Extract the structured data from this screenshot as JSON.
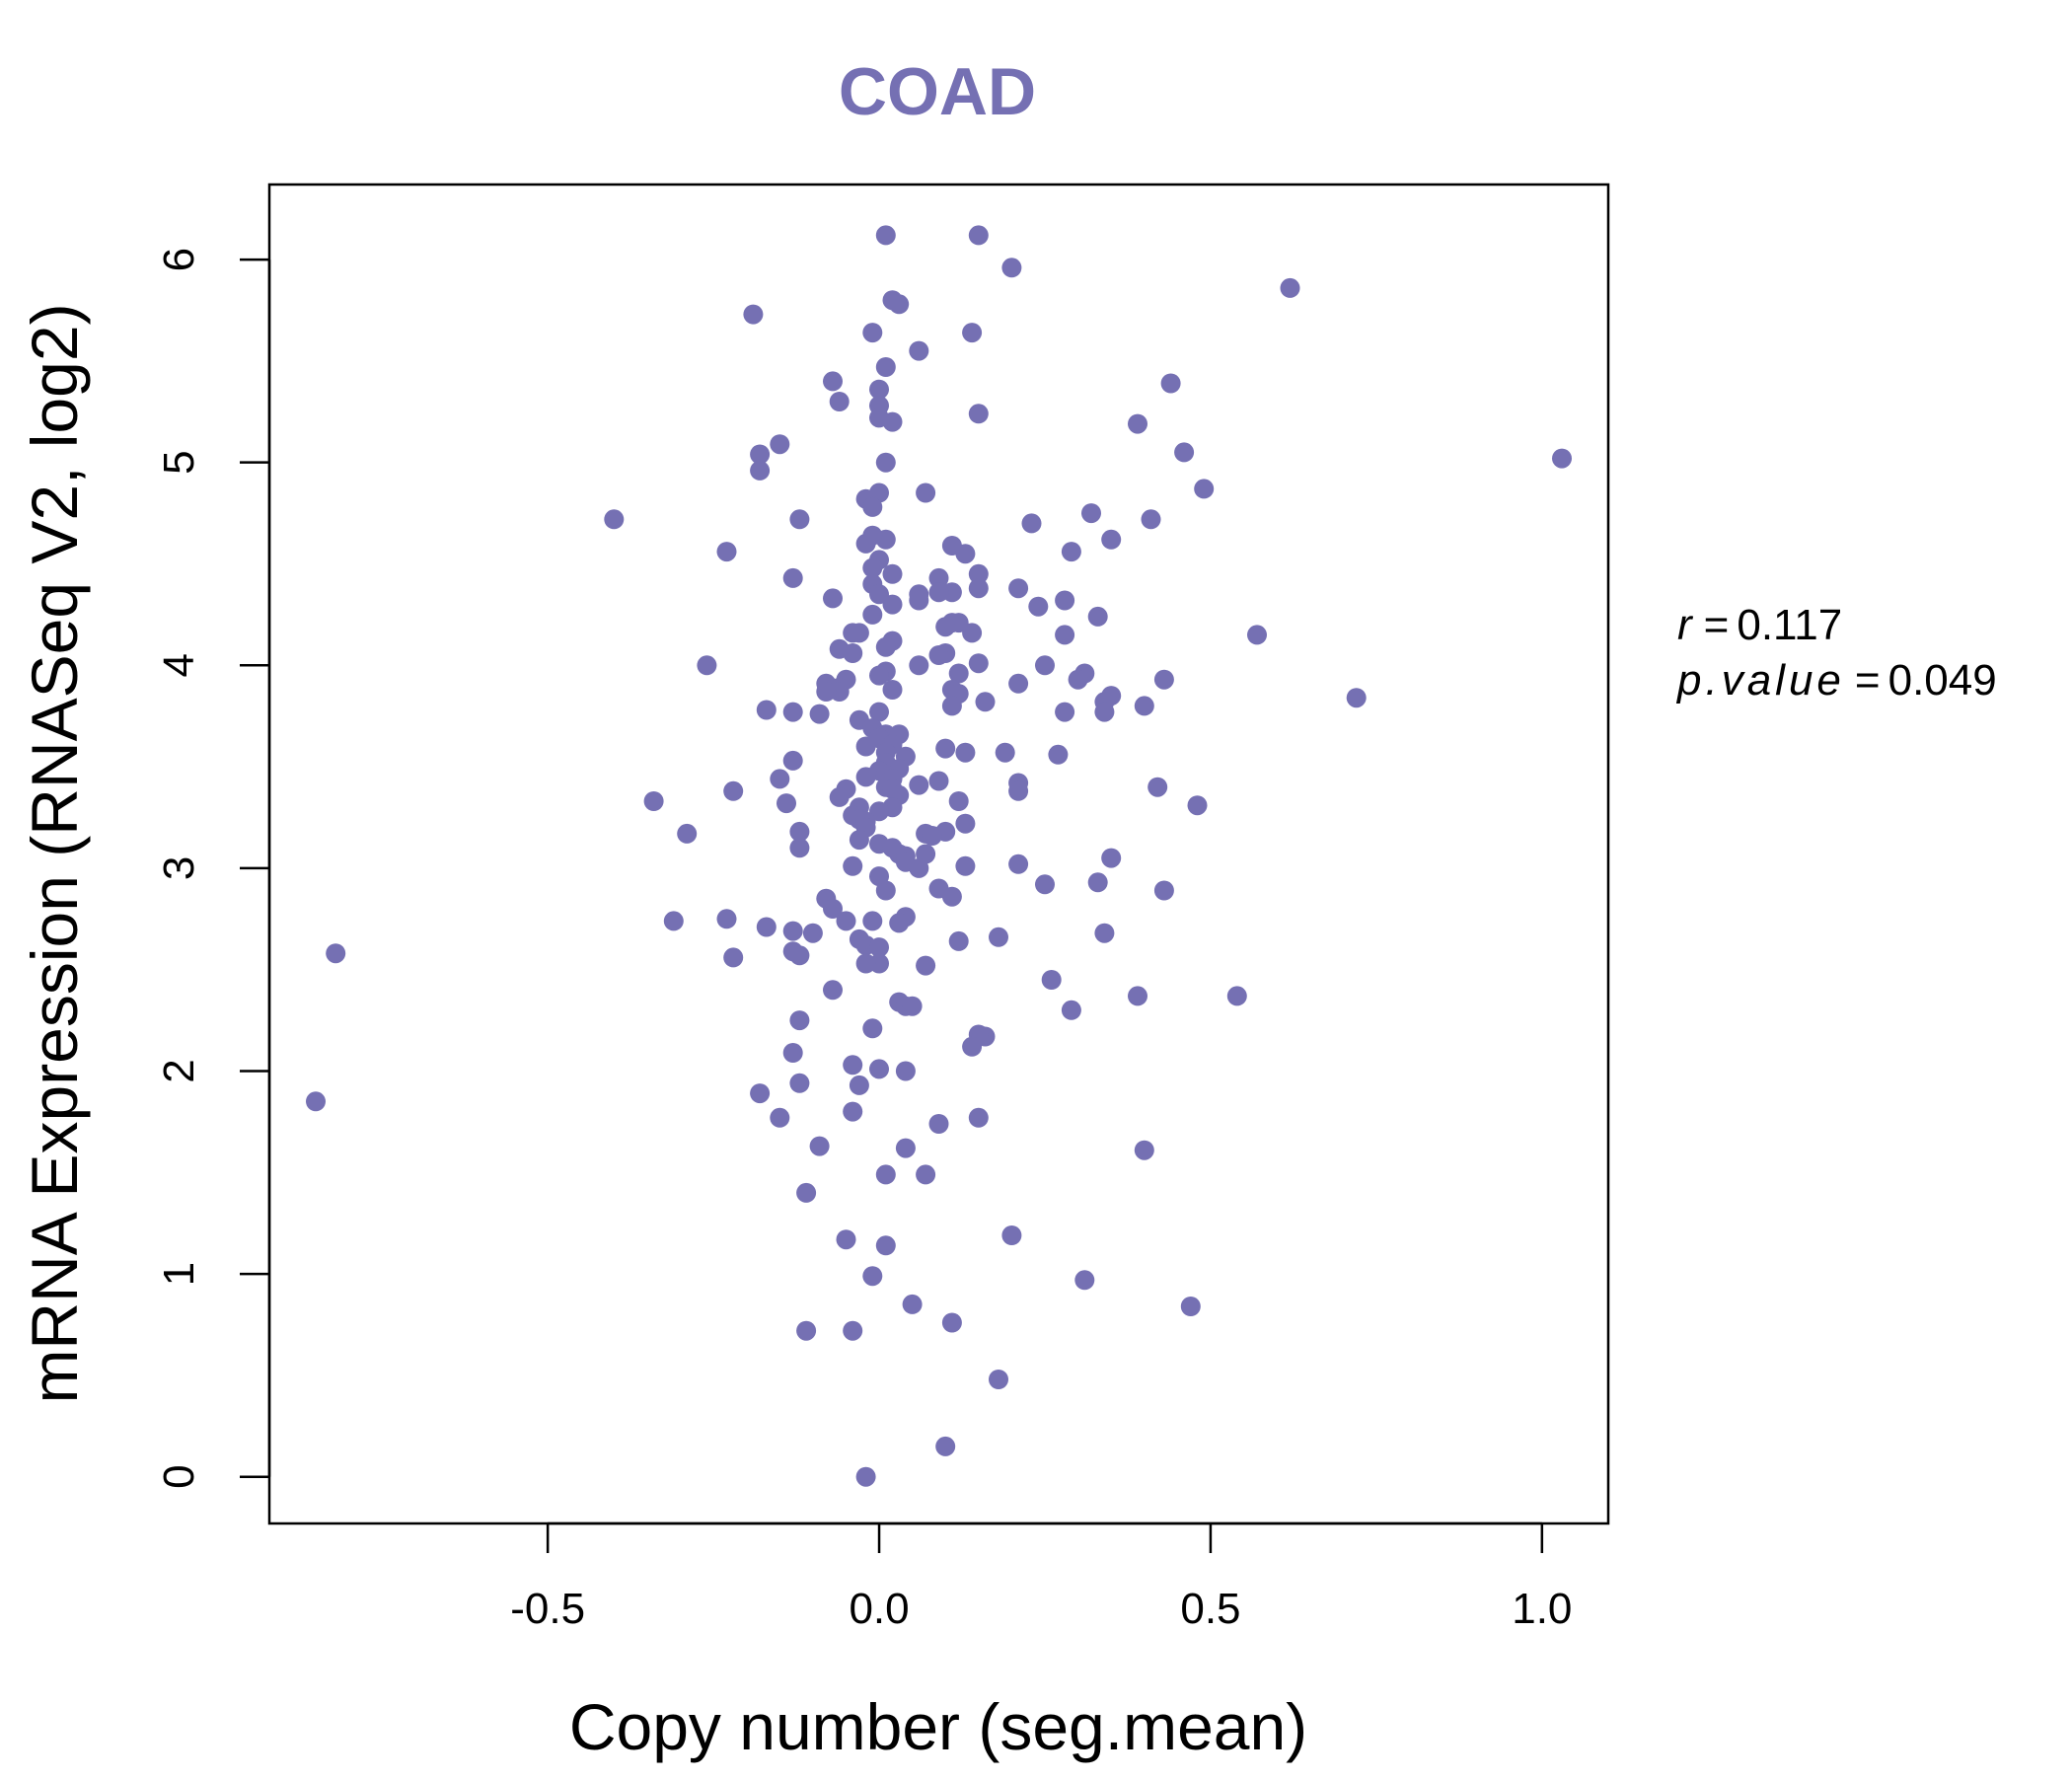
{
  "colors": {
    "point": "#7570B3",
    "title": "#7570B3",
    "axis": "#000000",
    "background": "#FFFFFF"
  },
  "chart_data": {
    "type": "scatter",
    "title": "COAD",
    "xlabel": "Copy number (seg.mean)",
    "ylabel": "mRNA Expression (RNASeq V2, log2)",
    "xlim": [
      -0.92,
      1.1
    ],
    "ylim": [
      -0.23,
      6.37
    ],
    "x_ticks": [
      -0.5,
      0.0,
      0.5,
      1.0
    ],
    "x_tick_labels": [
      "-0.5",
      "0.0",
      "0.5",
      "1.0"
    ],
    "y_ticks": [
      0,
      1,
      2,
      3,
      4,
      5,
      6
    ],
    "y_tick_labels": [
      "0",
      "1",
      "2",
      "3",
      "4",
      "5",
      "6"
    ],
    "grid": false,
    "legend": "none",
    "stats": {
      "r_label": "r",
      "r_value": "0.117",
      "p_label": "p.value",
      "p_value": "0.049"
    },
    "points": [
      [
        0.01,
        6.12
      ],
      [
        0.15,
        6.12
      ],
      [
        0.2,
        5.96
      ],
      [
        0.62,
        5.86
      ],
      [
        0.02,
        5.8
      ],
      [
        0.03,
        5.78
      ],
      [
        -0.19,
        5.73
      ],
      [
        -0.01,
        5.64
      ],
      [
        0.14,
        5.64
      ],
      [
        0.06,
        5.55
      ],
      [
        0.01,
        5.47
      ],
      [
        -0.07,
        5.4
      ],
      [
        0.44,
        5.39
      ],
      [
        0.0,
        5.36
      ],
      [
        -0.06,
        5.3
      ],
      [
        0.0,
        5.28
      ],
      [
        0.15,
        5.24
      ],
      [
        0.0,
        5.22
      ],
      [
        0.02,
        5.2
      ],
      [
        0.39,
        5.19
      ],
      [
        -0.15,
        5.09
      ],
      [
        0.46,
        5.05
      ],
      [
        -0.18,
        5.04
      ],
      [
        1.03,
        5.02
      ],
      [
        0.01,
        5.0
      ],
      [
        -0.18,
        4.96
      ],
      [
        0.49,
        4.87
      ],
      [
        0.07,
        4.85
      ],
      [
        0.0,
        4.85
      ],
      [
        -0.02,
        4.82
      ],
      [
        -0.01,
        4.78
      ],
      [
        0.32,
        4.75
      ],
      [
        -0.12,
        4.72
      ],
      [
        -0.4,
        4.72
      ],
      [
        0.41,
        4.72
      ],
      [
        0.23,
        4.7
      ],
      [
        0.01,
        4.62
      ],
      [
        -0.01,
        4.64
      ],
      [
        0.35,
        4.62
      ],
      [
        -0.02,
        4.6
      ],
      [
        0.11,
        4.59
      ],
      [
        -0.23,
        4.56
      ],
      [
        0.29,
        4.56
      ],
      [
        0.13,
        4.55
      ],
      [
        0.0,
        4.52
      ],
      [
        -0.01,
        4.48
      ],
      [
        0.02,
        4.45
      ],
      [
        0.15,
        4.45
      ],
      [
        -0.13,
        4.43
      ],
      [
        0.09,
        4.43
      ],
      [
        -0.01,
        4.4
      ],
      [
        0.15,
        4.38
      ],
      [
        0.21,
        4.38
      ],
      [
        0.0,
        4.35
      ],
      [
        0.06,
        4.35
      ],
      [
        0.11,
        4.36
      ],
      [
        0.09,
        4.36
      ],
      [
        -0.07,
        4.33
      ],
      [
        0.28,
        4.32
      ],
      [
        0.02,
        4.3
      ],
      [
        0.06,
        4.32
      ],
      [
        0.24,
        4.29
      ],
      [
        -0.01,
        4.25
      ],
      [
        0.33,
        4.24
      ],
      [
        0.11,
        4.21
      ],
      [
        0.12,
        4.21
      ],
      [
        0.1,
        4.19
      ],
      [
        0.14,
        4.16
      ],
      [
        -0.04,
        4.16
      ],
      [
        -0.03,
        4.16
      ],
      [
        0.57,
        4.15
      ],
      [
        0.28,
        4.15
      ],
      [
        0.02,
        4.12
      ],
      [
        -0.06,
        4.08
      ],
      [
        0.01,
        4.09
      ],
      [
        -0.04,
        4.06
      ],
      [
        0.1,
        4.06
      ],
      [
        0.09,
        4.05
      ],
      [
        0.15,
        4.01
      ],
      [
        -0.26,
        4.0
      ],
      [
        0.06,
        4.0
      ],
      [
        0.25,
        4.0
      ],
      [
        0.01,
        3.97
      ],
      [
        0.31,
        3.96
      ],
      [
        0.12,
        3.96
      ],
      [
        0.0,
        3.95
      ],
      [
        0.3,
        3.93
      ],
      [
        0.43,
        3.93
      ],
      [
        -0.05,
        3.93
      ],
      [
        -0.08,
        3.91
      ],
      [
        0.21,
        3.91
      ],
      [
        -0.06,
        3.89
      ],
      [
        0.02,
        3.88
      ],
      [
        0.11,
        3.88
      ],
      [
        -0.06,
        3.87
      ],
      [
        -0.08,
        3.87
      ],
      [
        0.12,
        3.86
      ],
      [
        0.35,
        3.85
      ],
      [
        0.72,
        3.84
      ],
      [
        0.34,
        3.82
      ],
      [
        0.16,
        3.82
      ],
      [
        0.11,
        3.8
      ],
      [
        0.4,
        3.8
      ],
      [
        0.34,
        3.77
      ],
      [
        -0.17,
        3.78
      ],
      [
        -0.13,
        3.77
      ],
      [
        0.28,
        3.77
      ],
      [
        -0.09,
        3.76
      ],
      [
        0.0,
        3.77
      ],
      [
        -0.03,
        3.73
      ],
      [
        -0.01,
        3.69
      ],
      [
        0.01,
        3.66
      ],
      [
        0.03,
        3.66
      ],
      [
        0.0,
        3.64
      ],
      [
        0.02,
        3.61
      ],
      [
        -0.02,
        3.6
      ],
      [
        0.1,
        3.59
      ],
      [
        0.13,
        3.57
      ],
      [
        0.19,
        3.57
      ],
      [
        0.01,
        3.57
      ],
      [
        0.27,
        3.56
      ],
      [
        0.04,
        3.55
      ],
      [
        -0.13,
        3.53
      ],
      [
        0.01,
        3.52
      ],
      [
        0.03,
        3.49
      ],
      [
        0.0,
        3.48
      ],
      [
        0.01,
        3.46
      ],
      [
        -0.02,
        3.45
      ],
      [
        0.02,
        3.44
      ],
      [
        -0.15,
        3.44
      ],
      [
        0.09,
        3.43
      ],
      [
        0.21,
        3.42
      ],
      [
        0.06,
        3.41
      ],
      [
        0.01,
        3.4
      ],
      [
        -0.05,
        3.39
      ],
      [
        0.02,
        3.39
      ],
      [
        0.42,
        3.4
      ],
      [
        0.21,
        3.38
      ],
      [
        -0.22,
        3.38
      ],
      [
        -0.06,
        3.35
      ],
      [
        0.03,
        3.36
      ],
      [
        -0.34,
        3.33
      ],
      [
        -0.14,
        3.32
      ],
      [
        0.12,
        3.33
      ],
      [
        0.48,
        3.31
      ],
      [
        0.02,
        3.3
      ],
      [
        -0.03,
        3.3
      ],
      [
        0.0,
        3.28
      ],
      [
        -0.04,
        3.26
      ],
      [
        -0.03,
        3.24
      ],
      [
        -0.02,
        3.23
      ],
      [
        0.13,
        3.22
      ],
      [
        -0.02,
        3.2
      ],
      [
        -0.12,
        3.18
      ],
      [
        0.1,
        3.18
      ],
      [
        -0.29,
        3.17
      ],
      [
        0.07,
        3.17
      ],
      [
        0.08,
        3.16
      ],
      [
        -0.03,
        3.14
      ],
      [
        0.0,
        3.12
      ],
      [
        -0.12,
        3.1
      ],
      [
        0.02,
        3.1
      ],
      [
        0.03,
        3.07
      ],
      [
        0.04,
        3.06
      ],
      [
        0.07,
        3.07
      ],
      [
        0.04,
        3.03
      ],
      [
        0.06,
        3.0
      ],
      [
        0.35,
        3.05
      ],
      [
        0.13,
        3.01
      ],
      [
        -0.04,
        3.01
      ],
      [
        0.21,
        3.02
      ],
      [
        0.0,
        2.96
      ],
      [
        0.33,
        2.93
      ],
      [
        0.25,
        2.92
      ],
      [
        0.09,
        2.9
      ],
      [
        0.01,
        2.89
      ],
      [
        0.43,
        2.89
      ],
      [
        0.11,
        2.86
      ],
      [
        -0.08,
        2.85
      ],
      [
        -0.07,
        2.8
      ],
      [
        0.04,
        2.76
      ],
      [
        -0.31,
        2.74
      ],
      [
        -0.23,
        2.75
      ],
      [
        -0.05,
        2.74
      ],
      [
        -0.01,
        2.74
      ],
      [
        0.03,
        2.73
      ],
      [
        -0.17,
        2.71
      ],
      [
        -0.13,
        2.69
      ],
      [
        -0.1,
        2.68
      ],
      [
        0.34,
        2.68
      ],
      [
        0.18,
        2.66
      ],
      [
        -0.03,
        2.65
      ],
      [
        0.12,
        2.64
      ],
      [
        -0.02,
        2.62
      ],
      [
        -0.13,
        2.59
      ],
      [
        0.0,
        2.61
      ],
      [
        -0.12,
        2.57
      ],
      [
        -0.22,
        2.56
      ],
      [
        0.0,
        2.53
      ],
      [
        -0.02,
        2.53
      ],
      [
        0.07,
        2.52
      ],
      [
        0.26,
        2.45
      ],
      [
        -0.07,
        2.4
      ],
      [
        -0.82,
        2.58
      ],
      [
        0.54,
        2.37
      ],
      [
        0.39,
        2.37
      ],
      [
        0.03,
        2.34
      ],
      [
        0.04,
        2.32
      ],
      [
        0.05,
        2.32
      ],
      [
        0.29,
        2.3
      ],
      [
        -0.12,
        2.25
      ],
      [
        -0.01,
        2.21
      ],
      [
        0.16,
        2.17
      ],
      [
        0.15,
        2.18
      ],
      [
        0.14,
        2.12
      ],
      [
        -0.13,
        2.09
      ],
      [
        -0.04,
        2.03
      ],
      [
        0.0,
        2.01
      ],
      [
        0.04,
        2.0
      ],
      [
        -0.12,
        1.94
      ],
      [
        -0.03,
        1.93
      ],
      [
        -0.18,
        1.89
      ],
      [
        -0.85,
        1.85
      ],
      [
        -0.04,
        1.8
      ],
      [
        -0.15,
        1.77
      ],
      [
        0.15,
        1.77
      ],
      [
        0.09,
        1.74
      ],
      [
        -0.09,
        1.63
      ],
      [
        0.04,
        1.62
      ],
      [
        0.4,
        1.61
      ],
      [
        0.07,
        1.49
      ],
      [
        0.01,
        1.49
      ],
      [
        -0.11,
        1.4
      ],
      [
        0.2,
        1.19
      ],
      [
        -0.05,
        1.17
      ],
      [
        0.01,
        1.14
      ],
      [
        -0.01,
        0.99
      ],
      [
        0.31,
        0.97
      ],
      [
        0.05,
        0.85
      ],
      [
        0.47,
        0.84
      ],
      [
        0.11,
        0.76
      ],
      [
        -0.04,
        0.72
      ],
      [
        -0.11,
        0.72
      ],
      [
        0.18,
        0.48
      ],
      [
        0.1,
        0.15
      ],
      [
        -0.02,
        0.0
      ]
    ]
  }
}
